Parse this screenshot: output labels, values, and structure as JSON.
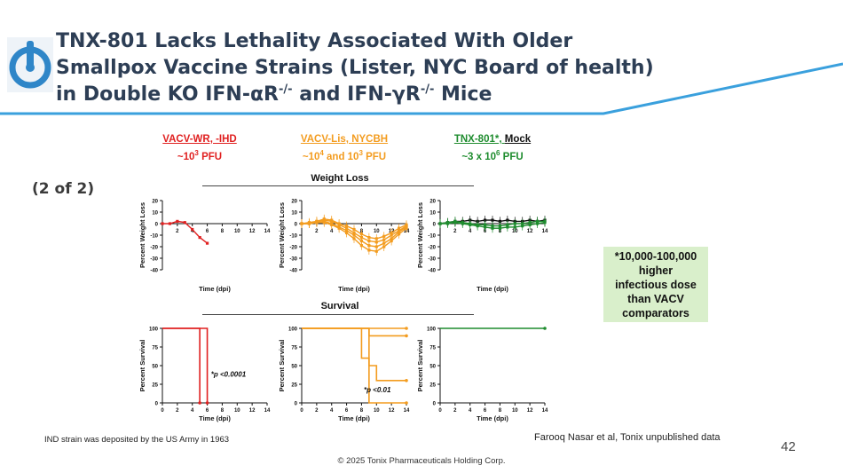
{
  "title": {
    "line1": "TNX-801 Lacks Lethality Associated With Older",
    "line2": "Smallpox Vaccine Strains (Lister, NYC Board of health)",
    "line3_a": "in Double KO IFN-αR",
    "line3_sup1": "-/-",
    "line3_b": " and IFN-γR",
    "line3_sup2": "-/-",
    "line3_c": " Mice"
  },
  "groups": [
    {
      "name": "VACV-WR, -IHD",
      "dose_pre": "~10",
      "dose_sup": "3",
      "dose_post": " PFU",
      "color": "#e02020"
    },
    {
      "name": "VACV-Lis, NYCBH",
      "dose_pre": "~10",
      "dose_sup": "4",
      "dose_mid": " and 10",
      "dose_sup2": "3",
      "dose_post": " PFU",
      "color": "#f39c1f"
    },
    {
      "name_a": "TNX-801*, ",
      "name_b": "Mock",
      "dose_pre": "~3 x 10",
      "dose_sup": "6",
      "dose_post": " PFU",
      "color": "#1e8c2e"
    }
  ],
  "part_label": "(2 of 2)",
  "sections": {
    "weight": "Weight Loss",
    "survival": "Survival"
  },
  "callout": [
    "*10,000-100,000",
    "higher",
    "infectious dose",
    "than VACV",
    "comparators"
  ],
  "footnote_left": "IND strain was deposited by the US Army in 1963",
  "citation": "Farooq Nasar et al, Tonix unpublished data",
  "page_number": "42",
  "copyright": "© 2025 Tonix Pharmaceuticals Holding Corp.",
  "colors": {
    "title": "#2d3e55",
    "accent_line": "#3aa0dd",
    "red": "#e02020",
    "orange": "#f39c1f",
    "green": "#1e8c2e",
    "black": "#111111",
    "callout_bg": "#d9efcb"
  },
  "chart_data": [
    {
      "type": "line",
      "panel": "weight-wr",
      "xlabel": "Time (dpi)",
      "ylabel": "Percent Weight Loss",
      "xlim": [
        0,
        14
      ],
      "ylim": [
        -40,
        20
      ],
      "xticks": [
        2,
        4,
        6,
        8,
        10,
        12,
        14
      ],
      "yticks": [
        20,
        10,
        0,
        -10,
        -20,
        -30,
        -40
      ],
      "series": [
        {
          "color": "#e02020",
          "x": [
            0,
            1,
            2,
            3,
            4,
            5,
            6
          ],
          "y": [
            0,
            0,
            2,
            1,
            -5,
            -12,
            -17
          ]
        }
      ]
    },
    {
      "type": "line",
      "panel": "weight-lis",
      "xlabel": "Time (dpi)",
      "ylabel": "Percent Weight Loss",
      "xlim": [
        0,
        14
      ],
      "ylim": [
        -40,
        20
      ],
      "xticks": [
        2,
        4,
        6,
        8,
        10,
        12,
        14
      ],
      "yticks": [
        20,
        10,
        0,
        -10,
        -20,
        -30,
        -40
      ],
      "series": [
        {
          "color": "#f39c1f",
          "x": [
            0,
            1,
            2,
            3,
            4,
            5,
            6,
            7,
            8,
            9,
            10,
            11,
            12,
            13,
            14
          ],
          "y": [
            0,
            0,
            1,
            2,
            0,
            -3,
            -6,
            -10,
            -15,
            -19,
            -20,
            -17,
            -13,
            -7,
            -3
          ]
        },
        {
          "color": "#f39c1f",
          "x": [
            0,
            1,
            2,
            3,
            4,
            5,
            6,
            7,
            8,
            9,
            10,
            11,
            12,
            13,
            14
          ],
          "y": [
            0,
            0,
            2,
            3,
            2,
            -1,
            -4,
            -8,
            -12,
            -15,
            -16,
            -14,
            -10,
            -6,
            -2
          ]
        },
        {
          "color": "#f39c1f",
          "x": [
            0,
            1,
            2,
            3,
            4,
            5,
            6,
            7,
            8,
            9,
            10,
            11,
            12,
            13,
            14
          ],
          "y": [
            0,
            1,
            2,
            4,
            3,
            0,
            -2,
            -5,
            -9,
            -12,
            -13,
            -11,
            -8,
            -4,
            -1
          ]
        },
        {
          "color": "#f39c1f",
          "x": [
            0,
            1,
            2,
            3,
            4,
            5,
            6,
            7,
            8,
            9,
            10,
            11,
            12,
            13,
            14
          ],
          "y": [
            0,
            0,
            1,
            1,
            -1,
            -4,
            -8,
            -13,
            -19,
            -23,
            -24,
            -20,
            -15,
            -9,
            -4
          ]
        }
      ]
    },
    {
      "type": "line",
      "panel": "weight-tnx",
      "xlabel": "Time (dpi)",
      "ylabel": "Percent Weight Loss",
      "xlim": [
        0,
        14
      ],
      "ylim": [
        -40,
        20
      ],
      "xticks": [
        2,
        4,
        6,
        8,
        10,
        12,
        14
      ],
      "yticks": [
        20,
        10,
        0,
        -10,
        -20,
        -30,
        -40
      ],
      "series": [
        {
          "color": "#111111",
          "x": [
            0,
            1,
            2,
            3,
            4,
            5,
            6,
            7,
            8,
            9,
            10,
            11,
            12,
            13,
            14
          ],
          "y": [
            0,
            1,
            2,
            2,
            3,
            2,
            3,
            3,
            2,
            3,
            2,
            2,
            3,
            2,
            3
          ]
        },
        {
          "color": "#1e8c2e",
          "x": [
            0,
            1,
            2,
            3,
            4,
            5,
            6,
            7,
            8,
            9,
            10,
            11,
            12,
            13,
            14
          ],
          "y": [
            0,
            0,
            1,
            0,
            -1,
            -2,
            -3,
            -4,
            -4,
            -3,
            -3,
            -2,
            -1,
            0,
            1
          ]
        },
        {
          "color": "#1e8c2e",
          "x": [
            0,
            1,
            2,
            3,
            4,
            5,
            6,
            7,
            8,
            9,
            10,
            11,
            12,
            13,
            14
          ],
          "y": [
            0,
            1,
            2,
            1,
            0,
            -1,
            -1,
            -2,
            -2,
            -1,
            0,
            0,
            1,
            2,
            2
          ]
        }
      ]
    },
    {
      "type": "line",
      "panel": "survival-wr",
      "step": true,
      "xlabel": "Time (dpi)",
      "ylabel": "Percent Survival",
      "xlim": [
        0,
        14
      ],
      "ylim": [
        0,
        100
      ],
      "xticks": [
        0,
        2,
        4,
        6,
        8,
        10,
        12,
        14
      ],
      "yticks": [
        0,
        25,
        50,
        75,
        100
      ],
      "annotation": "*p <0.0001",
      "series": [
        {
          "color": "#e02020",
          "x": [
            0,
            5,
            5
          ],
          "y": [
            100,
            100,
            0
          ]
        },
        {
          "color": "#e02020",
          "x": [
            0,
            6,
            6
          ],
          "y": [
            100,
            100,
            0
          ]
        }
      ]
    },
    {
      "type": "line",
      "panel": "survival-lis",
      "step": true,
      "xlabel": "Time (dpi)",
      "ylabel": "Percent Survival",
      "xlim": [
        0,
        14
      ],
      "ylim": [
        0,
        100
      ],
      "xticks": [
        0,
        2,
        4,
        6,
        8,
        10,
        12,
        14
      ],
      "yticks": [
        0,
        25,
        50,
        75,
        100
      ],
      "annotation": "*p <0.01",
      "series": [
        {
          "color": "#f39c1f",
          "x": [
            0,
            8,
            8,
            9,
            9,
            10,
            10,
            14
          ],
          "y": [
            100,
            100,
            60,
            60,
            50,
            50,
            30,
            30
          ]
        },
        {
          "color": "#f39c1f",
          "x": [
            0,
            9,
            9,
            14
          ],
          "y": [
            100,
            100,
            0,
            0
          ]
        },
        {
          "color": "#f39c1f",
          "x": [
            0,
            9,
            9,
            14
          ],
          "y": [
            100,
            100,
            90,
            90
          ]
        },
        {
          "color": "#f39c1f",
          "x": [
            0,
            14
          ],
          "y": [
            100,
            100
          ]
        }
      ]
    },
    {
      "type": "line",
      "panel": "survival-tnx",
      "step": true,
      "xlabel": "Time (dpi)",
      "ylabel": "Percent Survival",
      "xlim": [
        0,
        14
      ],
      "ylim": [
        0,
        100
      ],
      "xticks": [
        0,
        2,
        4,
        6,
        8,
        10,
        12,
        14
      ],
      "yticks": [
        0,
        25,
        50,
        75,
        100
      ],
      "series": [
        {
          "color": "#1e8c2e",
          "x": [
            0,
            14
          ],
          "y": [
            100,
            100
          ]
        }
      ]
    }
  ]
}
